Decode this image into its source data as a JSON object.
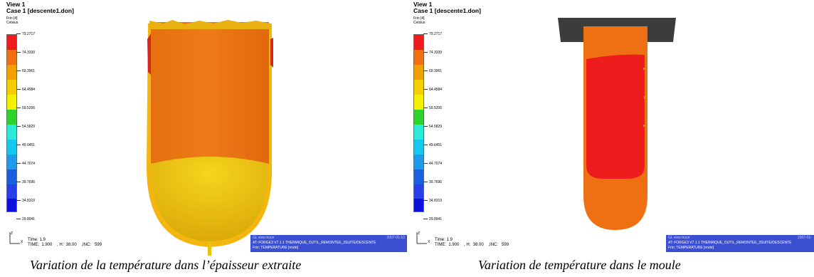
{
  "colors": [
    "#ee1c1c",
    "#ee7012",
    "#f0a000",
    "#f5ce00",
    "#f3f000",
    "#2ed12e",
    "#2bead8",
    "#16c8f0",
    "#1e9ae6",
    "#1a60dc",
    "#2a40e6",
    "#1010dc"
  ],
  "panels": [
    {
      "view_title": "View 1",
      "case_title": "Case 1  [descente1.don]",
      "legend_field": "Frin [4]",
      "legend_unit": "Celsius",
      "ticks": [
        "79.2717",
        "74.3339",
        "69.3961",
        "64.4584",
        "59.5206",
        "54.5829",
        "49.6451",
        "44.7074",
        "39.7696",
        "34.8319",
        "29.8941"
      ],
      "time_line1": "Time: 1.9",
      "time_line2": "TIME:  1.900    , H:  38.00    ,INC:   599",
      "info_left": "GL view trove",
      "info_date": "2007-01-10",
      "info_at": "AT:   FORGE3 V7.1.1 THERMIQUE_OUTIL_REMONTEE_3SUITE/DESCENTE",
      "info_frin": "Frin:  TEMPERATURE [node]",
      "caption": "Variation de la température dans l’épaisseur extraite"
    },
    {
      "view_title": "View 1",
      "case_title": "Case 1  [descente1.don]",
      "legend_field": "Frin [4]",
      "legend_unit": "Celsius",
      "ticks": [
        "79.2717",
        "74.3339",
        "69.3961",
        "64.4584",
        "59.5206",
        "54.5829",
        "49.6451",
        "44.7074",
        "39.7696",
        "34.8319",
        "29.8941"
      ],
      "time_line1": "Time: 1.9",
      "time_line2": "TIME:  1.900    , H:  38.00    ,INC:   599",
      "info_left": "GL view trove",
      "info_date": "2007-01-",
      "info_at": "AT:   FORGE3 V7.1.1 THERMIQUE_OUTIL_REMONTEE_3SUITE/DESCENTE",
      "info_frin": "Frin:  TEMPERATURE [node]",
      "caption": "Variation de température dans le moule"
    }
  ]
}
